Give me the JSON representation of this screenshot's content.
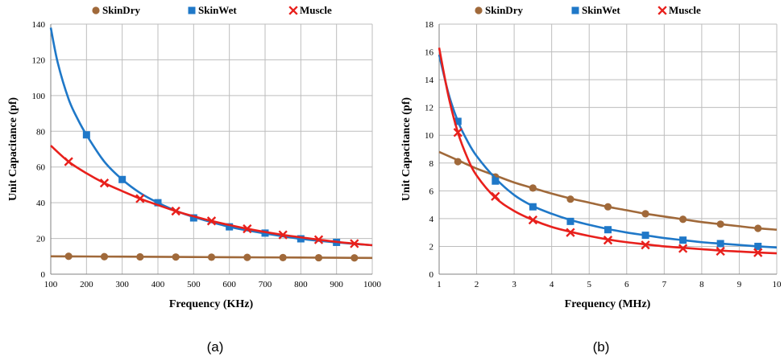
{
  "colors": {
    "SkinDry": "#a0693a",
    "SkinWet": "#1f78c8",
    "Muscle": "#e8201c",
    "grid": "#bdbdbd"
  },
  "chart_data": [
    {
      "panel_label": "(a)",
      "type": "line",
      "xlabel": "Frequency (KHz)",
      "ylabel": "Unit Capacitance (pf)",
      "xlim": [
        100,
        1000
      ],
      "ylim": [
        0,
        140
      ],
      "xticks": [
        100,
        200,
        300,
        400,
        500,
        600,
        700,
        800,
        900,
        1000
      ],
      "yticks": [
        0,
        20,
        40,
        60,
        80,
        100,
        120,
        140
      ],
      "grid": true,
      "legend_position": "top",
      "series": [
        {
          "name": "SkinDry",
          "marker": "circle",
          "curve_x": [
            100,
            200,
            300,
            400,
            500,
            600,
            700,
            800,
            900,
            1000
          ],
          "curve_y": [
            10,
            9.9,
            9.8,
            9.7,
            9.6,
            9.5,
            9.4,
            9.3,
            9.2,
            9.1
          ],
          "marker_x": [
            150,
            250,
            350,
            450,
            550,
            650,
            750,
            850,
            950
          ],
          "marker_y": [
            10,
            9.8,
            9.7,
            9.6,
            9.5,
            9.4,
            9.3,
            9.2,
            9.1
          ]
        },
        {
          "name": "SkinWet",
          "marker": "square",
          "curve_x": [
            100,
            120,
            150,
            175,
            200,
            250,
            300,
            350,
            400,
            450,
            500,
            600,
            700,
            800,
            900,
            1000
          ],
          "curve_y": [
            138,
            118,
            98,
            87,
            78,
            63,
            53,
            45.5,
            40,
            35.5,
            32,
            26.5,
            22.8,
            19.8,
            17.8,
            16.2
          ],
          "marker_x": [
            200,
            300,
            400,
            500,
            600,
            700,
            800,
            900
          ],
          "marker_y": [
            78,
            53,
            40,
            31.5,
            26.5,
            23,
            19.8,
            17.8
          ]
        },
        {
          "name": "Muscle",
          "marker": "x",
          "curve_x": [
            100,
            150,
            200,
            250,
            300,
            350,
            400,
            450,
            500,
            550,
            600,
            650,
            700,
            750,
            800,
            850,
            900,
            950,
            1000
          ],
          "curve_y": [
            72,
            63,
            56.5,
            51,
            46.5,
            42.3,
            38.7,
            35.3,
            32.4,
            29.8,
            27.5,
            25.4,
            23.6,
            22,
            20.6,
            19.3,
            18.1,
            17.1,
            16.2
          ],
          "marker_x": [
            150,
            250,
            350,
            450,
            550,
            650,
            750,
            850,
            950
          ],
          "marker_y": [
            63,
            51,
            42.3,
            35.3,
            29.8,
            25.4,
            22,
            19.3,
            17.1
          ]
        }
      ]
    },
    {
      "panel_label": "(b)",
      "type": "line",
      "xlabel": "Frequency (MHz)",
      "ylabel": "Unit Capacitance (pf)",
      "xlim": [
        1,
        10
      ],
      "ylim": [
        0,
        18
      ],
      "xticks": [
        1,
        2,
        3,
        4,
        5,
        6,
        7,
        8,
        9,
        10
      ],
      "yticks": [
        0,
        2,
        4,
        6,
        8,
        10,
        12,
        14,
        16,
        18
      ],
      "grid": true,
      "legend_position": "top",
      "series": [
        {
          "name": "SkinDry",
          "marker": "circle",
          "curve_x": [
            1,
            1.5,
            2,
            2.5,
            3,
            3.5,
            4,
            4.5,
            5,
            5.5,
            6,
            6.5,
            7,
            7.5,
            8,
            8.5,
            9,
            9.5,
            10
          ],
          "curve_y": [
            8.8,
            8.2,
            7.6,
            7.1,
            6.6,
            6.2,
            5.8,
            5.45,
            5.15,
            4.85,
            4.6,
            4.35,
            4.15,
            3.95,
            3.75,
            3.6,
            3.45,
            3.3,
            3.2
          ],
          "marker_x": [
            1.5,
            2.5,
            3.5,
            4.5,
            5.5,
            6.5,
            7.5,
            8.5,
            9.5
          ],
          "marker_y": [
            8.1,
            7.0,
            6.2,
            5.4,
            4.85,
            4.35,
            3.95,
            3.6,
            3.3
          ]
        },
        {
          "name": "SkinWet",
          "marker": "square",
          "curve_x": [
            1,
            1.25,
            1.5,
            1.75,
            2,
            2.5,
            3,
            3.5,
            4,
            4.5,
            5,
            5.5,
            6,
            6.5,
            7,
            7.5,
            8,
            8.5,
            9,
            9.5,
            10
          ],
          "curve_y": [
            15.8,
            13,
            11,
            9.6,
            8.5,
            6.9,
            5.7,
            4.9,
            4.35,
            3.9,
            3.55,
            3.25,
            3.0,
            2.8,
            2.6,
            2.45,
            2.3,
            2.2,
            2.1,
            2.0,
            1.92
          ],
          "marker_x": [
            1.5,
            2.5,
            3.5,
            4.5,
            5.5,
            6.5,
            7.5,
            8.5,
            9.5
          ],
          "marker_y": [
            11,
            6.7,
            4.85,
            3.8,
            3.2,
            2.8,
            2.45,
            2.2,
            2.0
          ]
        },
        {
          "name": "Muscle",
          "marker": "x",
          "curve_x": [
            1,
            1.25,
            1.5,
            1.75,
            2,
            2.5,
            3,
            3.5,
            4,
            4.5,
            5,
            5.5,
            6,
            6.5,
            7,
            7.5,
            8,
            8.5,
            9,
            9.5,
            10
          ],
          "curve_y": [
            16.3,
            12.8,
            10.2,
            8.4,
            7.1,
            5.5,
            4.55,
            3.9,
            3.4,
            3.05,
            2.75,
            2.5,
            2.3,
            2.15,
            2.0,
            1.9,
            1.8,
            1.7,
            1.63,
            1.56,
            1.5
          ],
          "marker_x": [
            1.5,
            2.5,
            3.5,
            4.5,
            5.5,
            6.5,
            7.5,
            8.5,
            9.5
          ],
          "marker_y": [
            10.2,
            5.6,
            3.9,
            3.0,
            2.45,
            2.1,
            1.85,
            1.65,
            1.55
          ]
        }
      ]
    }
  ]
}
